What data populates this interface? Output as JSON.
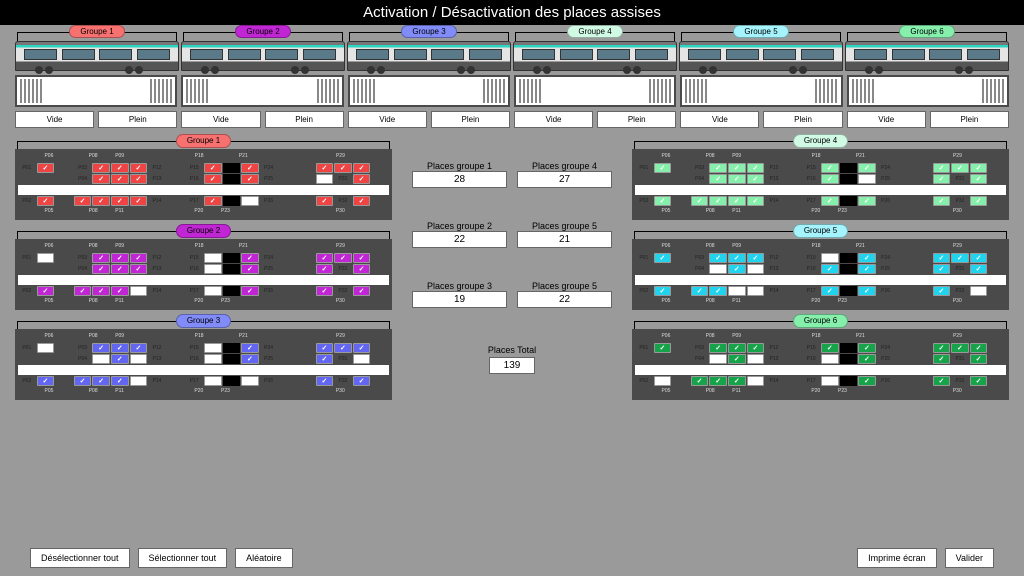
{
  "title": "Activation / Désactivation des places assises",
  "colors": {
    "g1": "#f87171",
    "g2": "#c026d3",
    "g3": "#818cf8",
    "g4": "#86efac",
    "g5": "#67e8f9",
    "g6": "#22c55e",
    "g4_pill": "#d1fae5"
  },
  "groups_top": [
    {
      "label": "Groupe 1",
      "color": "#f87171"
    },
    {
      "label": "Groupe 2",
      "color": "#c026d3"
    },
    {
      "label": "Groupe 3",
      "color": "#818cf8"
    },
    {
      "label": "Groupe 4",
      "color": "#d1fae5"
    },
    {
      "label": "Groupe 5",
      "color": "#a5f3fc"
    },
    {
      "label": "Groupe 6",
      "color": "#86efac"
    }
  ],
  "vide": "Vide",
  "plein": "Plein",
  "counts": {
    "left": [
      {
        "label": "Places groupe 1",
        "val": "28"
      },
      {
        "label": "Places groupe 2",
        "val": "22"
      },
      {
        "label": "Places groupe 3",
        "val": "19"
      }
    ],
    "right": [
      {
        "label": "Places groupe 4",
        "val": "27"
      },
      {
        "label": "Places groupe 5",
        "val": "21"
      },
      {
        "label": "Places groupe 5",
        "val": "22"
      }
    ]
  },
  "total": {
    "label": "Places Total",
    "val": "139"
  },
  "detail_groups": {
    "left": [
      {
        "label": "Groupe 1",
        "pill": "#f87171",
        "seat": "#ef4444"
      },
      {
        "label": "Groupe 2",
        "pill": "#c026d3",
        "seat": "#c026d3"
      },
      {
        "label": "Groupe 3",
        "pill": "#818cf8",
        "seat": "#6366f1"
      }
    ],
    "right": [
      {
        "label": "Groupe 4",
        "pill": "#d1fae5",
        "seat": "#86efac"
      },
      {
        "label": "Groupe 5",
        "pill": "#a5f3fc",
        "seat": "#22d3ee"
      },
      {
        "label": "Groupe 6",
        "pill": "#86efac",
        "seat": "#16a34a"
      }
    ]
  },
  "seat_layout": {
    "top_labels_a": [
      "",
      "P06",
      "",
      "P08",
      "P09",
      "",
      "",
      "",
      "P18",
      "",
      "P21",
      "",
      "",
      "",
      "",
      "P29",
      "",
      ""
    ],
    "row1": [
      {
        "t": "lbl",
        "v": "P01"
      },
      {
        "t": "s",
        "on": 1
      },
      {
        "t": "g"
      },
      {
        "t": "lbl",
        "v": "P03"
      },
      {
        "t": "s",
        "on": 1
      },
      {
        "t": "s",
        "on": 1
      },
      {
        "t": "s",
        "on": 1
      },
      {
        "t": "lbl",
        "v": "P12"
      },
      {
        "t": "g"
      },
      {
        "t": "lbl",
        "v": "P15"
      },
      {
        "t": "s",
        "on": 1
      },
      {
        "t": "d"
      },
      {
        "t": "s",
        "on": 1
      },
      {
        "t": "lbl",
        "v": "P24"
      },
      {
        "t": "g"
      },
      {
        "t": "g"
      },
      {
        "t": "s",
        "on": 1
      },
      {
        "t": "s",
        "on": 1
      },
      {
        "t": "s",
        "on": 0
      },
      {
        "t": "g"
      }
    ],
    "row2": [
      {
        "t": "g"
      },
      {
        "t": "g"
      },
      {
        "t": "g"
      },
      {
        "t": "lbl",
        "v": "P04"
      },
      {
        "t": "s",
        "on": 1
      },
      {
        "t": "s",
        "on": 1
      },
      {
        "t": "s",
        "on": 0
      },
      {
        "t": "lbl",
        "v": "P13"
      },
      {
        "t": "g"
      },
      {
        "t": "lbl",
        "v": "P16"
      },
      {
        "t": "s",
        "on": 1
      },
      {
        "t": "d"
      },
      {
        "t": "s",
        "on": 1
      },
      {
        "t": "lbl",
        "v": "P25"
      },
      {
        "t": "g"
      },
      {
        "t": "g"
      },
      {
        "t": "s",
        "on": 1
      },
      {
        "t": "lbl",
        "v": "P31"
      },
      {
        "t": "s",
        "on": 1
      },
      {
        "t": "g"
      }
    ],
    "mid_labels": [
      "",
      "",
      "",
      "P07",
      "P10",
      "",
      "",
      "",
      "P19",
      "P22",
      "",
      "",
      "",
      "",
      "",
      "P30",
      ""
    ],
    "row3": [
      {
        "t": "lbl",
        "v": "P02"
      },
      {
        "t": "s",
        "on": 1
      },
      {
        "t": "g"
      },
      {
        "t": "s",
        "on": 1
      },
      {
        "t": "s",
        "on": 1
      },
      {
        "t": "s",
        "on": 1
      },
      {
        "t": "s",
        "on": 0
      },
      {
        "t": "lbl",
        "v": "P14"
      },
      {
        "t": "g"
      },
      {
        "t": "lbl",
        "v": "P17"
      },
      {
        "t": "s",
        "on": 1
      },
      {
        "t": "d"
      },
      {
        "t": "s",
        "on": 1
      },
      {
        "t": "lbl",
        "v": "P26"
      },
      {
        "t": "g"
      },
      {
        "t": "g"
      },
      {
        "t": "s",
        "on": 1
      },
      {
        "t": "lbl",
        "v": "P32"
      },
      {
        "t": "s",
        "on": 1
      },
      {
        "t": "g"
      }
    ],
    "bot_labels": [
      "",
      "P05",
      "",
      "P08",
      "P11",
      "",
      "",
      "",
      "P20",
      "P23",
      "",
      "",
      "",
      "",
      "",
      "P30",
      "",
      ""
    ]
  },
  "footer": {
    "deselect": "Désélectionner tout",
    "select": "Sélectionner tout",
    "random": "Aléatoire",
    "print": "Imprime écran",
    "validate": "Valider"
  }
}
